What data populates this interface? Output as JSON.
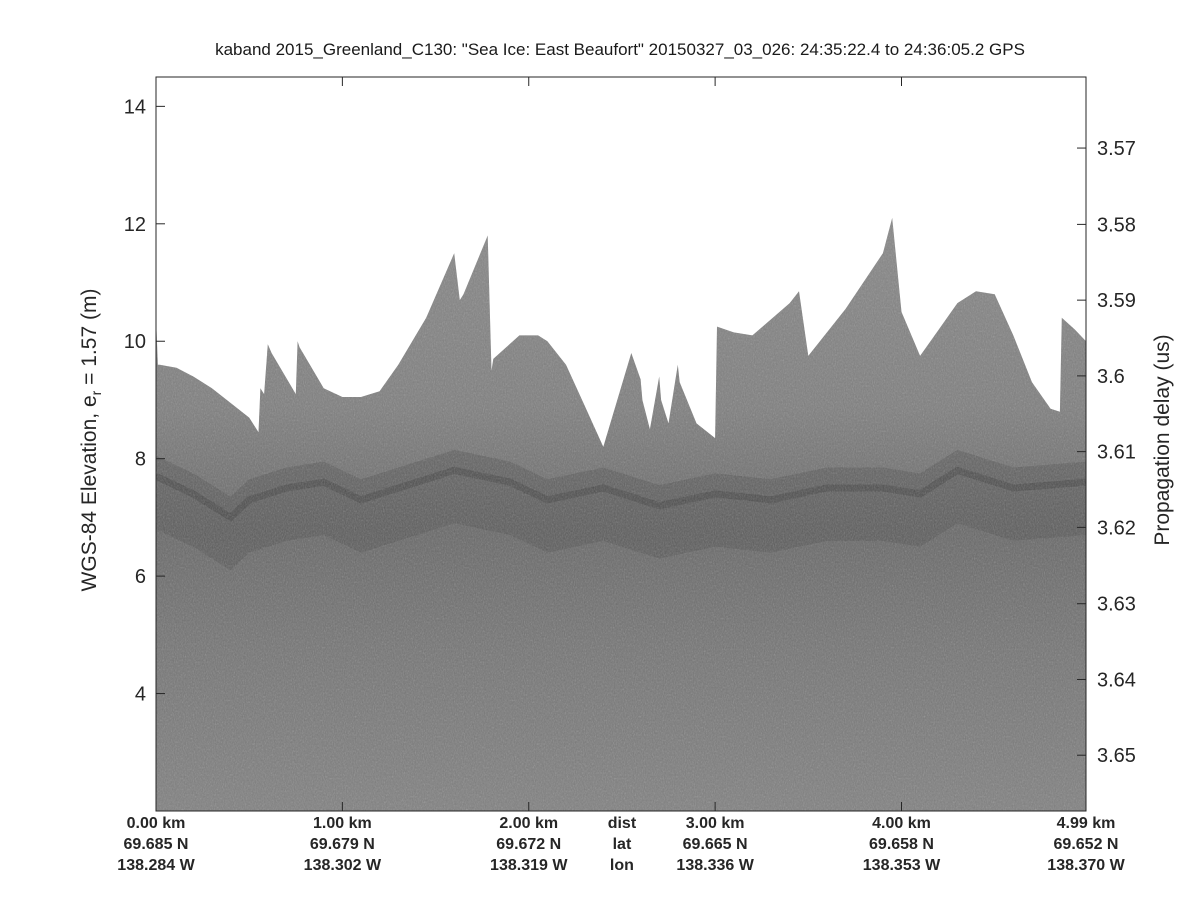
{
  "chart_data": {
    "type": "heatmap",
    "title": "kaband 2015_Greenland_C130: \"Sea Ice: East Beaufort\"  20150327_03_026: 24:35:22.4 to 24:36:05.2 GPS",
    "ylabel_left_main": "WGS-84 Elevation, e",
    "ylabel_left_sub": "r",
    "ylabel_left_tail": " = 1.57 (m)",
    "ylabel_right": "Propagation delay (us)",
    "ylim": [
      2,
      14.5
    ],
    "yticks_left": [
      4,
      6,
      8,
      10,
      12,
      14
    ],
    "yticks_right": [
      {
        "label": "3.57",
        "elev": 13.29
      },
      {
        "label": "3.58",
        "elev": 11.99
      },
      {
        "label": "3.59",
        "elev": 10.7
      },
      {
        "label": "3.6",
        "elev": 9.41
      },
      {
        "label": "3.61",
        "elev": 8.12
      },
      {
        "label": "3.62",
        "elev": 6.83
      },
      {
        "label": "3.63",
        "elev": 5.53
      },
      {
        "label": "3.64",
        "elev": 4.24
      },
      {
        "label": "3.65",
        "elev": 2.95
      }
    ],
    "xlim": [
      0,
      4.99
    ],
    "x_axis_rows": [
      {
        "name": "dist",
        "labels": [
          {
            "km": 0.0,
            "text": "0.00 km"
          },
          {
            "km": 1.0,
            "text": "1.00 km"
          },
          {
            "km": 2.0,
            "text": "2.00 km"
          },
          {
            "km": 2.5,
            "text": "dist"
          },
          {
            "km": 3.0,
            "text": "3.00 km"
          },
          {
            "km": 4.0,
            "text": "4.00 km"
          },
          {
            "km": 4.99,
            "text": "4.99 km"
          }
        ]
      },
      {
        "name": "lat",
        "labels": [
          {
            "km": 0.0,
            "text": "69.685 N"
          },
          {
            "km": 1.0,
            "text": "69.679 N"
          },
          {
            "km": 2.0,
            "text": "69.672 N"
          },
          {
            "km": 2.5,
            "text": "lat"
          },
          {
            "km": 3.0,
            "text": "69.665 N"
          },
          {
            "km": 4.0,
            "text": "69.658 N"
          },
          {
            "km": 4.99,
            "text": "69.652 N"
          }
        ]
      },
      {
        "name": "lon",
        "labels": [
          {
            "km": 0.0,
            "text": "138.284 W"
          },
          {
            "km": 1.0,
            "text": "138.302 W"
          },
          {
            "km": 2.0,
            "text": "138.319 W"
          },
          {
            "km": 2.5,
            "text": "lon"
          },
          {
            "km": 3.0,
            "text": "138.336 W"
          },
          {
            "km": 4.0,
            "text": "138.353 W"
          },
          {
            "km": 4.99,
            "text": "138.370 W"
          }
        ]
      }
    ],
    "xticks_km": [
      0,
      1,
      2,
      3,
      4,
      4.99
    ],
    "grid": false,
    "colormap": "gray",
    "colors": {
      "background": "#ffffff",
      "echo_mid": "#888888",
      "echo_dark": "#555555"
    },
    "echo_top_elevation": {
      "x_km": [
        0.0,
        0.01,
        0.02,
        0.11,
        0.2,
        0.3,
        0.4,
        0.5,
        0.55,
        0.56,
        0.58,
        0.6,
        0.62,
        0.75,
        0.76,
        0.77,
        0.9,
        1.0,
        1.1,
        1.2,
        1.3,
        1.45,
        1.6,
        1.63,
        1.65,
        1.78,
        1.8,
        1.81,
        1.95,
        2.05,
        2.1,
        2.2,
        2.3,
        2.4,
        2.55,
        2.6,
        2.61,
        2.65,
        2.7,
        2.71,
        2.75,
        2.8,
        2.81,
        2.9,
        3.0,
        3.01,
        3.1,
        3.2,
        3.4,
        3.45,
        3.5,
        3.7,
        3.9,
        3.95,
        4.0,
        4.1,
        4.2,
        4.3,
        4.4,
        4.5,
        4.6,
        4.7,
        4.8,
        4.85,
        4.86,
        4.93,
        4.99
      ],
      "elev": [
        10.4,
        9.6,
        9.6,
        9.55,
        9.4,
        9.2,
        8.95,
        8.7,
        8.45,
        9.2,
        9.1,
        9.95,
        9.8,
        9.1,
        10.0,
        9.9,
        9.2,
        9.05,
        9.05,
        9.15,
        9.6,
        10.4,
        11.5,
        10.7,
        10.8,
        11.8,
        9.5,
        9.7,
        10.1,
        10.1,
        10.0,
        9.6,
        8.9,
        8.2,
        9.8,
        9.35,
        9.0,
        8.5,
        9.4,
        9.0,
        8.6,
        9.6,
        9.3,
        8.6,
        8.35,
        10.25,
        10.15,
        10.1,
        10.65,
        10.85,
        9.75,
        10.55,
        11.5,
        12.1,
        10.5,
        9.75,
        10.2,
        10.65,
        10.85,
        10.8,
        10.1,
        9.3,
        8.85,
        8.8,
        10.4,
        10.2,
        10.0
      ]
    },
    "surface_elevation": {
      "x_km": [
        0.0,
        0.2,
        0.4,
        0.5,
        0.7,
        0.9,
        1.1,
        1.3,
        1.6,
        1.9,
        2.1,
        2.4,
        2.7,
        3.0,
        3.3,
        3.6,
        3.9,
        4.1,
        4.3,
        4.6,
        4.99
      ],
      "elev": [
        7.7,
        7.4,
        7.0,
        7.3,
        7.5,
        7.6,
        7.3,
        7.5,
        7.8,
        7.6,
        7.3,
        7.5,
        7.2,
        7.4,
        7.3,
        7.5,
        7.5,
        7.4,
        7.8,
        7.5,
        7.6
      ]
    }
  }
}
